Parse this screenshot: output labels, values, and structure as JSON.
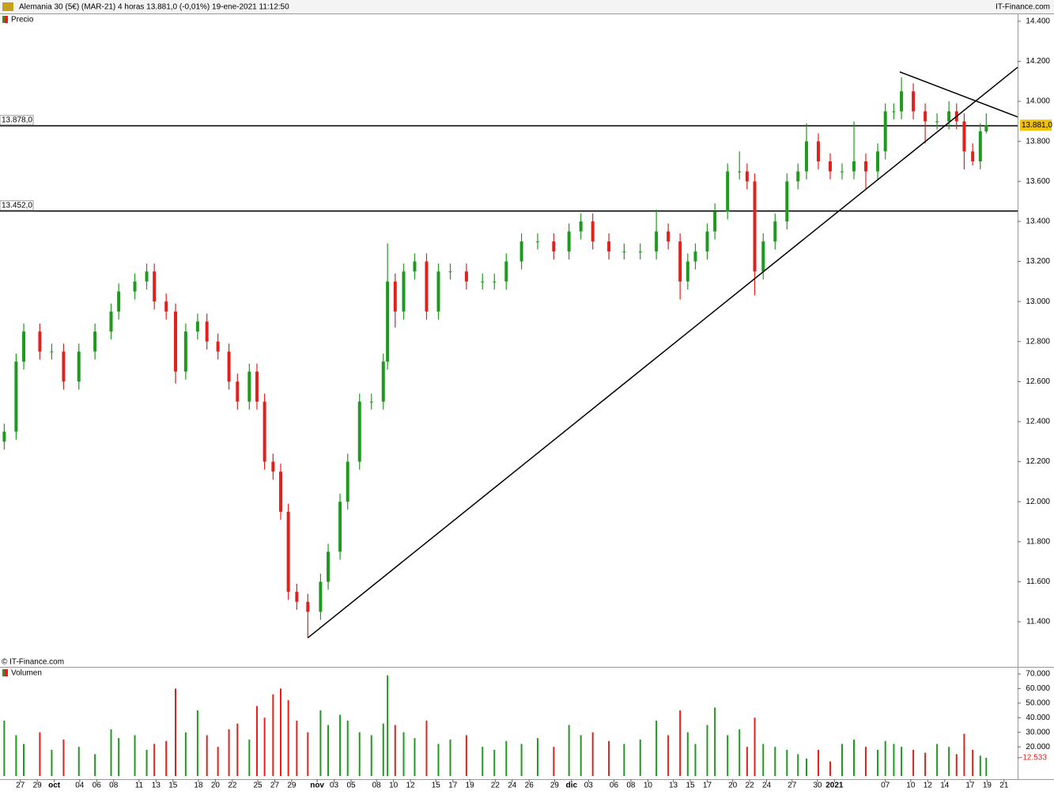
{
  "header": {
    "title": "Alemania 30 (5€) (MAR-21) 4 horas 13.881,0 (-0,01%) 19-ene-2021 11:12:50",
    "brand": "IT-Finance.com"
  },
  "chart_data": [
    {
      "type": "candlestick",
      "title": "Precio",
      "credit": "© IT-Finance.com",
      "up_color": "#1e9a1e",
      "down_color": "#e3201c",
      "x": [
        -1.9,
        -0.5,
        0.4,
        2.3,
        3.7,
        5.1,
        6.9,
        8.8,
        10.7,
        11.6,
        13.5,
        14.9,
        15.8,
        17.2,
        18.3,
        19.5,
        20.9,
        22.0,
        23.3,
        24.6,
        25.6,
        27.0,
        27.9,
        28.8,
        29.8,
        30.7,
        31.6,
        32.6,
        33.9,
        35.4,
        36.3,
        37.7,
        38.6,
        40.0,
        41.4,
        42.8,
        43.3,
        44.2,
        45.2,
        46.5,
        47.9,
        49.3,
        50.7,
        52.6,
        54.5,
        55.9,
        57.3,
        59.1,
        61.0,
        62.9,
        64.7,
        66.1,
        67.5,
        69.4,
        71.2,
        73.1,
        75.0,
        76.4,
        77.8,
        78.7,
        79.6,
        81.0,
        81.9,
        83.4,
        84.8,
        85.7,
        86.6,
        87.6,
        89.0,
        90.4,
        91.7,
        92.7,
        94.1,
        95.5,
        96.9,
        98.3,
        99.7,
        101.1,
        102.0,
        103.0,
        103.9,
        105.3,
        106.7,
        108.1,
        109.5,
        110.4,
        111.3,
        112.3,
        113.2,
        113.9
      ],
      "open": [
        12300,
        12350,
        12700,
        12850,
        12750,
        12750,
        12600,
        12750,
        12850,
        12950,
        13050,
        13100,
        13150,
        13000,
        12950,
        12650,
        12850,
        12900,
        12800,
        12750,
        12600,
        12500,
        12650,
        12500,
        12200,
        12150,
        11950,
        11550,
        11500,
        11450,
        11600,
        11750,
        12000,
        12200,
        12500,
        12500,
        12700,
        13100,
        12950,
        13150,
        13200,
        12950,
        13150,
        13150,
        13100,
        13100,
        13100,
        13200,
        13300,
        13300,
        13250,
        13350,
        13400,
        13300,
        13250,
        13250,
        13250,
        13350,
        13300,
        13100,
        13200,
        13250,
        13350,
        13450,
        13650,
        13650,
        13600,
        13150,
        13300,
        13400,
        13600,
        13650,
        13800,
        13700,
        13650,
        13650,
        13700,
        13650,
        13750,
        13950,
        13950,
        14050,
        13950,
        13900,
        13900,
        13950,
        13900,
        13750,
        13700,
        13850
      ],
      "high": [
        12390,
        12740,
        12890,
        12890,
        12790,
        12790,
        12790,
        12890,
        12990,
        13090,
        13140,
        13190,
        13190,
        13040,
        12990,
        12890,
        12940,
        12940,
        12840,
        12790,
        12640,
        12690,
        12690,
        12540,
        12240,
        12190,
        11990,
        11590,
        11540,
        11640,
        11790,
        12040,
        12240,
        12540,
        12540,
        12740,
        13290,
        13140,
        13190,
        13240,
        13240,
        13190,
        13190,
        13190,
        13140,
        13140,
        13240,
        13340,
        13340,
        13340,
        13390,
        13440,
        13440,
        13340,
        13290,
        13290,
        13460,
        13390,
        13340,
        13240,
        13290,
        13390,
        13490,
        13690,
        13750,
        13690,
        13640,
        13340,
        13440,
        13640,
        13690,
        13890,
        13840,
        13740,
        13690,
        13900,
        13740,
        13790,
        13990,
        13990,
        14120,
        14090,
        13990,
        13940,
        14000,
        13990,
        13940,
        13790,
        13890,
        13940
      ],
      "low": [
        12260,
        12310,
        12660,
        12710,
        12710,
        12560,
        12560,
        12710,
        12810,
        12910,
        13010,
        13060,
        12960,
        12910,
        12590,
        12610,
        12810,
        12760,
        12710,
        12560,
        12460,
        12460,
        12460,
        12160,
        12110,
        11910,
        11510,
        11460,
        11320,
        11410,
        11560,
        11710,
        11960,
        12160,
        12460,
        12460,
        12660,
        12870,
        12910,
        13110,
        12910,
        12910,
        13110,
        13060,
        13060,
        13060,
        13060,
        13160,
        13260,
        13210,
        13210,
        13310,
        13260,
        13210,
        13210,
        13210,
        13210,
        13260,
        13010,
        13060,
        13160,
        13210,
        13310,
        13410,
        13610,
        13560,
        13030,
        13110,
        13260,
        13360,
        13560,
        13610,
        13660,
        13610,
        13610,
        13610,
        13560,
        13610,
        13710,
        13910,
        13910,
        13910,
        13790,
        13860,
        13860,
        13860,
        13660,
        13680,
        13660,
        13840
      ],
      "close": [
        12350,
        12700,
        12850,
        12750,
        12750,
        12600,
        12750,
        12850,
        12950,
        13050,
        13100,
        13150,
        13000,
        12950,
        12650,
        12850,
        12900,
        12800,
        12750,
        12600,
        12500,
        12650,
        12500,
        12200,
        12150,
        11950,
        11550,
        11500,
        11450,
        11600,
        11750,
        12000,
        12200,
        12500,
        12500,
        12700,
        13100,
        12950,
        13150,
        13200,
        12950,
        13150,
        13150,
        13100,
        13100,
        13100,
        13200,
        13300,
        13300,
        13250,
        13350,
        13400,
        13300,
        13250,
        13250,
        13250,
        13350,
        13300,
        13100,
        13200,
        13250,
        13350,
        13450,
        13650,
        13650,
        13600,
        13150,
        13300,
        13400,
        13600,
        13650,
        13800,
        13700,
        13650,
        13650,
        13700,
        13650,
        13750,
        13950,
        13950,
        14050,
        13950,
        13900,
        13900,
        13950,
        13900,
        13750,
        13700,
        13850,
        13881
      ],
      "last_price": {
        "value": 13881,
        "label": "13.881,0"
      },
      "levels": [
        {
          "value": 13878,
          "label": "13.878,0"
        },
        {
          "value": 13452,
          "label": "13.452,0"
        }
      ],
      "trendlines": [
        {
          "x": [
            33.9,
            117.6
          ],
          "y": [
            11320,
            14170
          ]
        },
        {
          "x": [
            103.7,
            117.6
          ],
          "y": [
            14147,
            13922
          ]
        }
      ],
      "xlim": [
        -2.4,
        117.6
      ],
      "ylim": [
        11175,
        14435
      ],
      "yticks": [
        {
          "value": 11400,
          "label": "11.400"
        },
        {
          "value": 11600,
          "label": "11.600"
        },
        {
          "value": 11800,
          "label": "11.800"
        },
        {
          "value": 12000,
          "label": "12.000"
        },
        {
          "value": 12200,
          "label": "12.200"
        },
        {
          "value": 12400,
          "label": "12.400"
        },
        {
          "value": 12600,
          "label": "12.600"
        },
        {
          "value": 12800,
          "label": "12.800"
        },
        {
          "value": 13000,
          "label": "13.000"
        },
        {
          "value": 13200,
          "label": "13.200"
        },
        {
          "value": 13400,
          "label": "13.400"
        },
        {
          "value": 13600,
          "label": "13.600"
        },
        {
          "value": 13800,
          "label": "13.800"
        },
        {
          "value": 14000,
          "label": "14.000"
        },
        {
          "value": 14200,
          "label": "14.200"
        },
        {
          "value": 14400,
          "label": "14.400"
        }
      ],
      "xticks": [
        {
          "value": 0,
          "label": "27"
        },
        {
          "value": 2,
          "label": "29"
        },
        {
          "value": 4,
          "label": "oct"
        },
        {
          "value": 7,
          "label": "04"
        },
        {
          "value": 9,
          "label": "06"
        },
        {
          "value": 11,
          "label": "08"
        },
        {
          "value": 14,
          "label": "11"
        },
        {
          "value": 16,
          "label": "13"
        },
        {
          "value": 18,
          "label": "15"
        },
        {
          "value": 21,
          "label": "18"
        },
        {
          "value": 23,
          "label": "20"
        },
        {
          "value": 25,
          "label": "22"
        },
        {
          "value": 28,
          "label": "25"
        },
        {
          "value": 30,
          "label": "27"
        },
        {
          "value": 32,
          "label": "29"
        },
        {
          "value": 35,
          "label": "nov"
        },
        {
          "value": 37,
          "label": "03"
        },
        {
          "value": 39,
          "label": "05"
        },
        {
          "value": 42,
          "label": "08"
        },
        {
          "value": 44,
          "label": "10"
        },
        {
          "value": 46,
          "label": "12"
        },
        {
          "value": 49,
          "label": "15"
        },
        {
          "value": 51,
          "label": "17"
        },
        {
          "value": 53,
          "label": "19"
        },
        {
          "value": 56,
          "label": "22"
        },
        {
          "value": 58,
          "label": "24"
        },
        {
          "value": 60,
          "label": "26"
        },
        {
          "value": 63,
          "label": "29"
        },
        {
          "value": 65,
          "label": "dic"
        },
        {
          "value": 67,
          "label": "03"
        },
        {
          "value": 70,
          "label": "06"
        },
        {
          "value": 72,
          "label": "08"
        },
        {
          "value": 74,
          "label": "10"
        },
        {
          "value": 77,
          "label": "13"
        },
        {
          "value": 79,
          "label": "15"
        },
        {
          "value": 81,
          "label": "17"
        },
        {
          "value": 84,
          "label": "20"
        },
        {
          "value": 86,
          "label": "22"
        },
        {
          "value": 88,
          "label": "24"
        },
        {
          "value": 91,
          "label": "27"
        },
        {
          "value": 94,
          "label": "30"
        },
        {
          "value": 96,
          "label": "2021"
        },
        {
          "value": 102,
          "label": "07"
        },
        {
          "value": 105,
          "label": "10"
        },
        {
          "value": 107,
          "label": "12"
        },
        {
          "value": 109,
          "label": "14"
        },
        {
          "value": 112,
          "label": "17"
        },
        {
          "value": 114,
          "label": "19"
        },
        {
          "value": 116,
          "label": "21"
        }
      ]
    },
    {
      "type": "bar",
      "title": "Volumen",
      "values": [
        38000,
        28000,
        22000,
        30000,
        18000,
        25000,
        20000,
        15000,
        32000,
        26000,
        28000,
        18000,
        22000,
        24000,
        60000,
        30000,
        45000,
        28000,
        20000,
        32000,
        36000,
        25000,
        48000,
        40000,
        56000,
        60000,
        52000,
        38000,
        30000,
        45000,
        35000,
        42000,
        38000,
        30000,
        28000,
        36000,
        69000,
        35000,
        30000,
        26000,
        38000,
        22000,
        25000,
        28000,
        20000,
        18000,
        24000,
        22000,
        26000,
        20000,
        35000,
        28000,
        30000,
        24000,
        22000,
        25000,
        38000,
        28000,
        45000,
        30000,
        22000,
        35000,
        47000,
        28000,
        32000,
        20000,
        40000,
        22000,
        20000,
        18000,
        15000,
        12000,
        18000,
        10000,
        22000,
        25000,
        20000,
        18000,
        24000,
        22000,
        20000,
        18000,
        16000,
        22000,
        20000,
        15000,
        29000,
        18000,
        14000,
        12533
      ],
      "last_volume": {
        "value": 12533,
        "label": "-12.533"
      },
      "ylim": [
        0,
        73800
      ],
      "yticks": [
        {
          "value": 20000,
          "label": "20.000"
        },
        {
          "value": 30000,
          "label": "30.000"
        },
        {
          "value": 40000,
          "label": "40.000"
        },
        {
          "value": 50000,
          "label": "50.000"
        },
        {
          "value": 60000,
          "label": "60.000"
        },
        {
          "value": 70000,
          "label": "70.000"
        }
      ]
    }
  ]
}
